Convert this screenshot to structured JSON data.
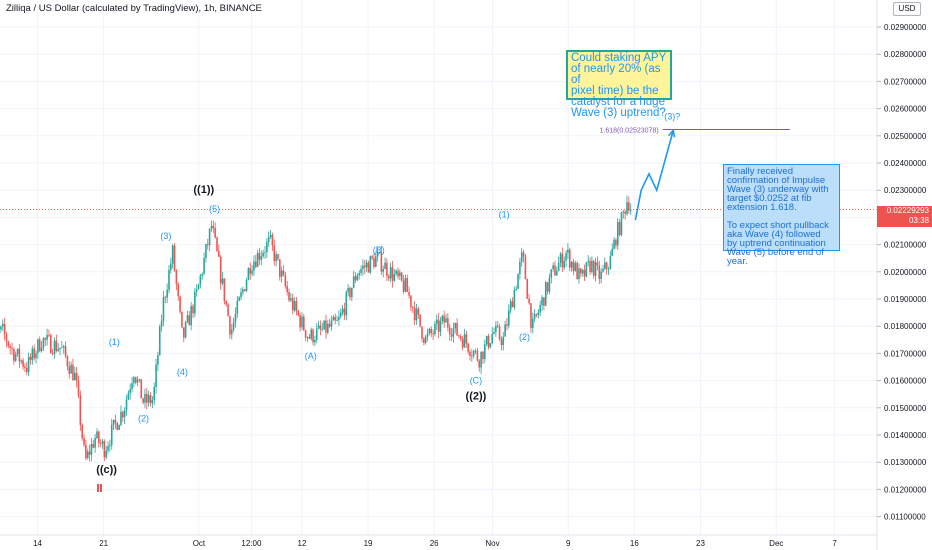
{
  "header": {
    "title": "Zilliqa / US Dollar (calculated by TradingView), 1h, BINANCE",
    "currency": "USD"
  },
  "price_tag": {
    "price": "0.02229293",
    "countdown": "03:38",
    "partial_label": "0.022"
  },
  "notes": {
    "yellow": "Could staking APY\nof nearly 20% (as of\npixel time) be the\ncatalyst for a huge\nWave (3) uptrend?",
    "blue": "Finally received\nconfirmation of Impulse\nWave (3) underway with\ntarget $0.0252 at fib\nextension 1.618.\n\nTo expect short pullback\naka Wave (4) followed\nby uptrend continuation\nWave (5) before end of\nyear."
  },
  "fib": {
    "label": "1.618(0.02523078)",
    "value": 0.02523078
  },
  "colors": {
    "up": "#26a69a",
    "down": "#ef5350",
    "wave_blue": "#2196f3",
    "wave_black": "#131722",
    "fib_line": "#7e57c2"
  },
  "chart_data": {
    "type": "candlestick",
    "title": "Zilliqa / US Dollar (calculated by TradingView), 1h, BINANCE",
    "y_ticks": [
      "0.02900000",
      "0.02800000",
      "0.02700000",
      "0.02600000",
      "0.02500000",
      "0.02400000",
      "0.02300000",
      "0.02200000",
      "0.02100000",
      "0.02000000",
      "0.01900000",
      "0.01800000",
      "0.01700000",
      "0.01600000",
      "0.01500000",
      "0.01400000",
      "0.01300000",
      "0.01200000",
      "0.01100000"
    ],
    "y_values": [
      0.029,
      0.028,
      0.027,
      0.026,
      0.025,
      0.024,
      0.023,
      0.022,
      0.021,
      0.02,
      0.019,
      0.018,
      0.017,
      0.016,
      0.015,
      0.014,
      0.013,
      0.012,
      0.011
    ],
    "ylim": [
      0.0107,
      0.0304
    ],
    "x_ticks": [
      "14",
      "21",
      "Oct",
      "12:00",
      "12",
      "19",
      "26",
      "Nov",
      "9",
      "16",
      "23",
      "Dec",
      "7"
    ],
    "price_path": [
      {
        "d": 0,
        "p": 0.0176
      },
      {
        "d": 1.5,
        "p": 0.0178
      },
      {
        "d": 2.5,
        "p": 0.0171
      },
      {
        "d": 4,
        "p": 0.0165
      },
      {
        "d": 5.5,
        "p": 0.0175
      },
      {
        "d": 7.5,
        "p": 0.0172
      },
      {
        "d": 9,
        "p": 0.0161
      },
      {
        "d": 10,
        "p": 0.013
      },
      {
        "d": 11,
        "p": 0.0139
      },
      {
        "d": 12,
        "p": 0.0135
      },
      {
        "d": 13,
        "p": 0.0143
      },
      {
        "d": 14,
        "p": 0.015
      },
      {
        "d": 15,
        "p": 0.0164
      },
      {
        "d": 16,
        "p": 0.0152
      },
      {
        "d": 17,
        "p": 0.0153
      },
      {
        "d": 18,
        "p": 0.0188
      },
      {
        "d": 19,
        "p": 0.0207
      },
      {
        "d": 20,
        "p": 0.0175
      },
      {
        "d": 21.5,
        "p": 0.0192
      },
      {
        "d": 23,
        "p": 0.0217
      },
      {
        "d": 25,
        "p": 0.0178
      },
      {
        "d": 27,
        "p": 0.0203
      },
      {
        "d": 29,
        "p": 0.0211
      },
      {
        "d": 31,
        "p": 0.019
      },
      {
        "d": 33,
        "p": 0.0176
      },
      {
        "d": 36,
        "p": 0.0181
      },
      {
        "d": 38,
        "p": 0.02
      },
      {
        "d": 40,
        "p": 0.0205
      },
      {
        "d": 43,
        "p": 0.0194
      },
      {
        "d": 45,
        "p": 0.0175
      },
      {
        "d": 47,
        "p": 0.0182
      },
      {
        "d": 49,
        "p": 0.0175
      },
      {
        "d": 50.5,
        "p": 0.0168
      },
      {
        "d": 52,
        "p": 0.0178
      },
      {
        "d": 53,
        "p": 0.0175
      },
      {
        "d": 54,
        "p": 0.0191
      },
      {
        "d": 55,
        "p": 0.0206
      },
      {
        "d": 56,
        "p": 0.0179
      },
      {
        "d": 58,
        "p": 0.0199
      },
      {
        "d": 59.5,
        "p": 0.0207
      },
      {
        "d": 61,
        "p": 0.0197
      },
      {
        "d": 62,
        "p": 0.0203
      },
      {
        "d": 63,
        "p": 0.0198
      },
      {
        "d": 64,
        "p": 0.0204
      },
      {
        "d": 64.6,
        "p": 0.0213
      },
      {
        "d": 65.2,
        "p": 0.0219
      },
      {
        "d": 65.8,
        "p": 0.0227
      },
      {
        "d": 66.2,
        "p": 0.0223
      }
    ],
    "projection": [
      {
        "d": 66.6,
        "p": 0.0219
      },
      {
        "d": 67.2,
        "p": 0.023
      },
      {
        "d": 68.0,
        "p": 0.0236
      },
      {
        "d": 68.8,
        "p": 0.023
      },
      {
        "d": 70.5,
        "p": 0.0252
      }
    ],
    "last_price": 0.02229293,
    "annotations": [
      {
        "text": "(1)",
        "d": 13,
        "p": 0.0173,
        "color": "blue"
      },
      {
        "text": "(2)",
        "d": 16,
        "p": 0.0145,
        "color": "blue"
      },
      {
        "text": "(3)",
        "d": 18.3,
        "p": 0.0212,
        "color": "blue"
      },
      {
        "text": "(4)",
        "d": 20,
        "p": 0.0162,
        "color": "blue"
      },
      {
        "text": "(5)",
        "d": 23.3,
        "p": 0.0222,
        "color": "blue"
      },
      {
        "text": "(A)",
        "d": 33.2,
        "p": 0.0168,
        "color": "blue"
      },
      {
        "text": "(B)",
        "d": 40.2,
        "p": 0.0207,
        "color": "blue"
      },
      {
        "text": "(C)",
        "d": 50.2,
        "p": 0.0159,
        "color": "blue"
      },
      {
        "text": "(1)",
        "d": 53.1,
        "p": 0.022,
        "color": "blue"
      },
      {
        "text": "(2)",
        "d": 55.2,
        "p": 0.0175,
        "color": "blue"
      },
      {
        "text": "(3)?",
        "d": 70.4,
        "p": 0.0256,
        "color": "blue"
      },
      {
        "text": "((1))",
        "d": 22.2,
        "p": 0.0229,
        "color": "black"
      },
      {
        "text": "((2))",
        "d": 50.2,
        "p": 0.0153,
        "color": "black"
      },
      {
        "text": "((c))",
        "d": 12.2,
        "p": 0.0126,
        "color": "black"
      }
    ]
  }
}
